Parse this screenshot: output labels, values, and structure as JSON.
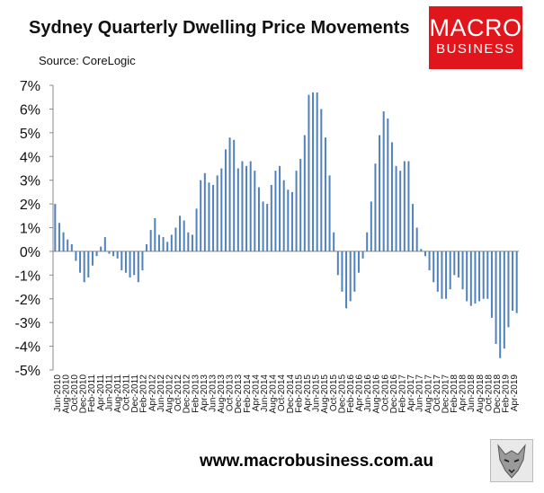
{
  "title": "Sydney Quarterly Dwelling Price Movements",
  "source": "Source: CoreLogic",
  "logo": {
    "line1": "MACRO",
    "line2": "BUSINESS"
  },
  "footer": "www.macrobusiness.com.au",
  "colors": {
    "bar": "#4f81bd",
    "axis": "#888888",
    "logo_bg": "#e1161d"
  },
  "icons": {
    "footer_logo": "wolf-icon"
  },
  "chart_data": {
    "type": "bar",
    "title": "Sydney Quarterly Dwelling Price Movements",
    "xlabel": "",
    "ylabel": "",
    "ylim": [
      -5,
      7
    ],
    "yticks": [
      "-5%",
      "-4%",
      "-3%",
      "-2%",
      "-1%",
      "0%",
      "1%",
      "2%",
      "3%",
      "4%",
      "5%",
      "6%",
      "7%"
    ],
    "grid": false,
    "xtick_labels": [
      "Jun-2010",
      "Aug-2010",
      "Oct-2010",
      "Dec-2010",
      "Feb-2011",
      "Apr-2011",
      "Jun-2011",
      "Aug-2011",
      "Oct-2011",
      "Dec-2011",
      "Feb-2012",
      "Apr-2012",
      "Jun-2012",
      "Aug-2012",
      "Oct-2012",
      "Dec-2012",
      "Feb-2013",
      "Apr-2013",
      "Jun-2013",
      "Aug-2013",
      "Oct-2013",
      "Dec-2013",
      "Feb-2014",
      "Apr-2014",
      "Jun-2014",
      "Aug-2014",
      "Oct-2014",
      "Dec-2014",
      "Feb-2015",
      "Apr-2015",
      "Jun-2015",
      "Aug-2015",
      "Oct-2015",
      "Dec-2015",
      "Feb-2016",
      "Apr-2016",
      "Jun-2016",
      "Aug-2016",
      "Oct-2016",
      "Dec-2016",
      "Feb-2017",
      "Apr-2017",
      "Jun-2017",
      "Aug-2017",
      "Oct-2017",
      "Dec-2017",
      "Feb-2018",
      "Apr-2018",
      "Jun-2018",
      "Aug-2018",
      "Oct-2018",
      "Dec-2018",
      "Feb-2019",
      "Apr-2019"
    ],
    "series": [
      {
        "values": [
          2.0,
          1.2,
          0.8,
          0.5,
          0.3,
          -0.4,
          -0.9,
          -1.3,
          -1.1,
          -0.6,
          -0.2,
          0.2,
          0.6,
          -0.1,
          -0.2,
          -0.3,
          -0.8,
          -0.9,
          -1.1,
          -1.0,
          -1.3,
          -0.8,
          0.3,
          0.9,
          1.4,
          0.7,
          0.6,
          0.4,
          0.7,
          1.0,
          1.5,
          1.3,
          0.8,
          0.7,
          1.8,
          3.0,
          3.3,
          2.9,
          2.8,
          3.2,
          3.5,
          4.3,
          4.8,
          4.7,
          3.5,
          3.8,
          3.6,
          3.8,
          3.4,
          2.7,
          2.1,
          2.0,
          2.8,
          3.4,
          3.6,
          3.0,
          2.6,
          2.5,
          3.4,
          3.9,
          4.9,
          6.6,
          6.7,
          6.7,
          6.0,
          4.8,
          3.2,
          0.8,
          -1.0,
          -1.7,
          -2.4,
          -2.1,
          -1.7,
          -0.9,
          -0.3,
          0.8,
          2.1,
          3.7,
          4.9,
          5.9,
          5.6,
          4.6,
          3.6,
          3.4,
          3.8,
          3.8,
          2.0,
          1.0,
          0.1,
          -0.2,
          -0.8,
          -1.3,
          -1.7,
          -2.0,
          -2.0,
          -1.6,
          -1.0,
          -1.1,
          -1.6,
          -2.1,
          -2.3,
          -2.2,
          -2.1,
          -2.0,
          -2.0,
          -2.8,
          -3.9,
          -4.5,
          -4.1,
          -3.2,
          -2.5,
          -2.6
        ]
      }
    ]
  }
}
